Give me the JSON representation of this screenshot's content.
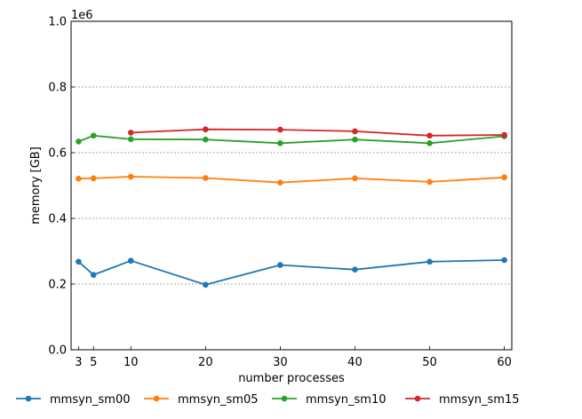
{
  "chart_data": {
    "type": "line",
    "xlabel": "number processes",
    "ylabel": "memory [GB]",
    "offset_label": "1e6",
    "xlim": [
      2,
      61
    ],
    "ylim": [
      0,
      1000000
    ],
    "xticks": [
      3,
      5,
      10,
      20,
      30,
      40,
      50,
      60
    ],
    "yticks": [
      0,
      200000,
      400000,
      600000,
      800000,
      1000000
    ],
    "ytick_labels": [
      "0.0",
      "0.2",
      "0.4",
      "0.6",
      "0.8",
      "1.0"
    ],
    "grid": "horizontal dashed",
    "legend_position": "bottom",
    "series": [
      {
        "name": "mmsyn_sm00",
        "color": "#1f77b4",
        "x": [
          3,
          5,
          10,
          20,
          30,
          40,
          50,
          60
        ],
        "y": [
          268000,
          228000,
          271000,
          198000,
          258000,
          244000,
          268000,
          273000
        ]
      },
      {
        "name": "mmsyn_sm05",
        "color": "#ff7f0e",
        "x": [
          3,
          5,
          10,
          20,
          30,
          40,
          50,
          60
        ],
        "y": [
          521000,
          522000,
          527000,
          523000,
          509000,
          522000,
          511000,
          525000
        ]
      },
      {
        "name": "mmsyn_sm10",
        "color": "#2ca02c",
        "x": [
          3,
          5,
          10,
          20,
          30,
          40,
          50,
          60
        ],
        "y": [
          634000,
          652000,
          641000,
          640000,
          629000,
          640000,
          629000,
          650000
        ]
      },
      {
        "name": "mmsyn_sm15",
        "color": "#d62728",
        "x": [
          10,
          20,
          30,
          40,
          50,
          60
        ],
        "y": [
          661000,
          671000,
          670000,
          665000,
          652000,
          654000
        ]
      }
    ]
  }
}
